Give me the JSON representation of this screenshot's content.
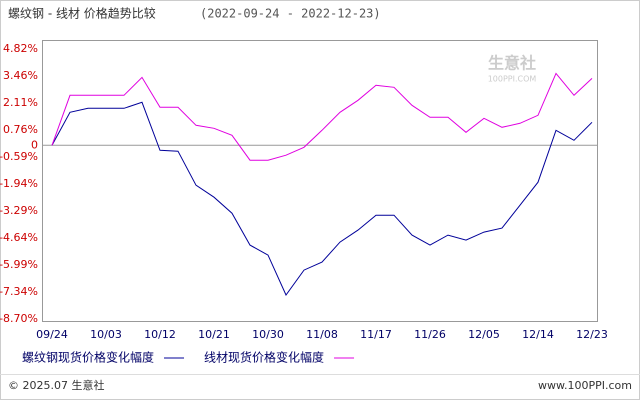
{
  "chart_data": {
    "type": "line",
    "title": "螺纹钢 - 线材 价格趋势比较",
    "subtitle": "(2022-09-24 - 2022-12-23)",
    "categories": [
      "09/24",
      null,
      null,
      "10/03",
      null,
      null,
      "10/12",
      null,
      null,
      "10/21",
      null,
      null,
      "10/30",
      null,
      null,
      "11/08",
      null,
      null,
      "11/17",
      null,
      null,
      "11/26",
      null,
      null,
      "12/05",
      null,
      null,
      "12/14",
      null,
      null,
      "12/23"
    ],
    "series": [
      {
        "name": "螺纹钢现货价格变化幅度",
        "color": "#000099",
        "values": [
          0,
          1.65,
          1.85,
          1.85,
          1.85,
          2.15,
          -0.25,
          -0.3,
          -2.0,
          -2.6,
          -3.4,
          -5.0,
          -5.5,
          -7.5,
          -6.25,
          -5.85,
          -4.85,
          -4.25,
          -3.5,
          -3.5,
          -4.5,
          -5.0,
          -4.5,
          -4.75,
          -4.35,
          -4.15,
          -3.0,
          -1.85,
          0.75,
          0.25,
          1.15
        ]
      },
      {
        "name": "线材现货价格变化幅度",
        "color": "#e000e0",
        "values": [
          0,
          2.5,
          2.5,
          2.5,
          2.5,
          3.4,
          1.9,
          1.9,
          1.0,
          0.85,
          0.5,
          -0.75,
          -0.75,
          -0.5,
          -0.1,
          0.75,
          1.65,
          2.25,
          3.0,
          2.9,
          2.0,
          1.4,
          1.4,
          0.65,
          1.35,
          0.9,
          1.1,
          1.5,
          3.6,
          2.5,
          3.35
        ]
      }
    ],
    "ylim": [
      -8.7,
      4.82
    ],
    "yticks": [
      {
        "value": 4.82,
        "label": "4.82%"
      },
      {
        "value": 3.46,
        "label": "3.46%"
      },
      {
        "value": 2.11,
        "label": "2.11%"
      },
      {
        "value": 0.76,
        "label": "0.76%"
      },
      0,
      {
        "value": -0.59,
        "label": "-0.59%"
      },
      {
        "value": -1.94,
        "label": "-1.94%"
      },
      {
        "value": -3.29,
        "label": "-3.29%"
      },
      {
        "value": -4.64,
        "label": "-4.64%"
      },
      {
        "value": -5.99,
        "label": "-5.99%"
      },
      {
        "value": -7.34,
        "label": "-7.34%"
      },
      {
        "value": -8.7,
        "label": "-8.70%"
      }
    ],
    "grid": false,
    "zero_line": true,
    "watermark": {
      "text": "生意社",
      "sub": "100PPI.COM"
    }
  },
  "footer": {
    "left": "© 2025.07 生意社",
    "right": "www.100PPI.com"
  }
}
